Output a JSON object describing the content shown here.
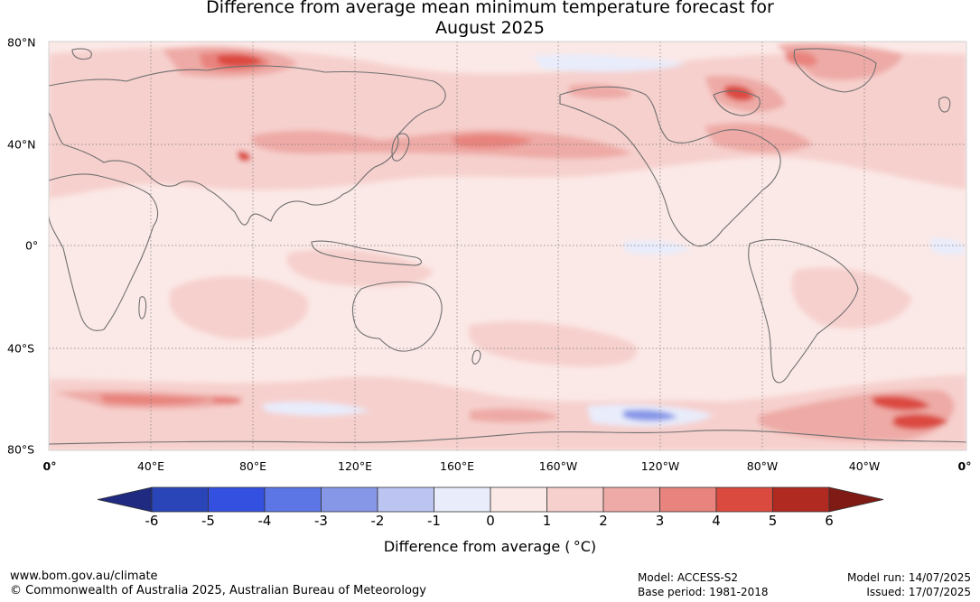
{
  "title_line1": "Difference from average mean minimum temperature forecast for",
  "title_line2": "August 2025",
  "lat_labels": [
    "80°N",
    "40°N",
    "0°",
    "40°S",
    "80°S"
  ],
  "lon_labels": [
    "0°",
    "40°E",
    "80°E",
    "120°E",
    "160°E",
    "160°W",
    "120°W",
    "80°W",
    "40°W",
    "0°"
  ],
  "legend": {
    "title": "Difference from average ( °C)",
    "ticks": [
      "-6",
      "-5",
      "-4",
      "-3",
      "-2",
      "-1",
      "0",
      "1",
      "2",
      "3",
      "4",
      "5",
      "6"
    ],
    "colors": [
      "#1f2a80",
      "#2a45b8",
      "#3450e0",
      "#5c76e6",
      "#8797e8",
      "#bcc5f2",
      "#e8ecfb",
      "#fbe9e7",
      "#f6d0cd",
      "#eeaaa6",
      "#e8837d",
      "#db4a3f",
      "#b02a22",
      "#7f1a15"
    ]
  },
  "colors": {
    "land_outline": "#707070",
    "background_anomaly": "#fbe9e7"
  },
  "footer": {
    "website": "www.bom.gov.au/climate",
    "copyright": "© Commonwealth of Australia 2025, Australian Bureau of Meteorology",
    "model": "Model: ACCESS-S2",
    "base_period": "Base period: 1981-2018",
    "model_run": "Model run: 14/07/2025",
    "issued": "Issued: 17/07/2025"
  }
}
